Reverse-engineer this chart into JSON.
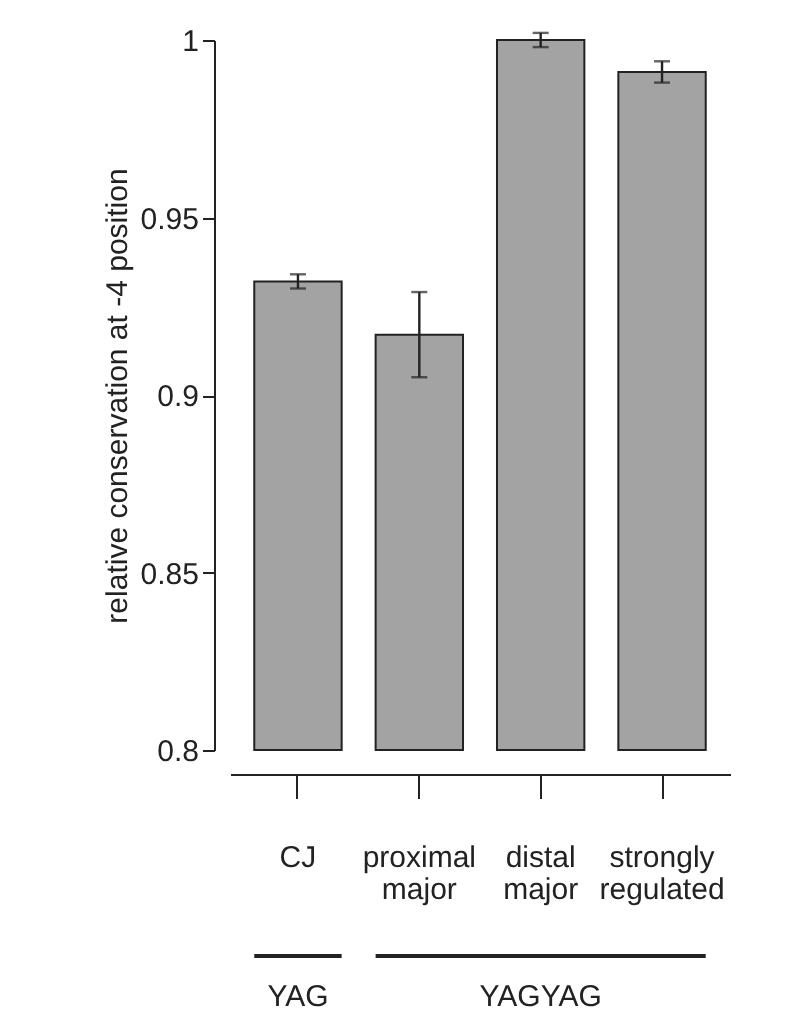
{
  "chart_data": {
    "type": "bar",
    "ylabel": "relative conservation at -4 position",
    "categories": [
      "CJ",
      "proximal major",
      "distal major",
      "strongly regulated"
    ],
    "values": [
      0.932,
      0.917,
      1.0,
      0.991
    ],
    "errors": [
      0.002,
      0.012,
      0.002,
      0.003
    ],
    "color": "#a3a3a3",
    "ylim": [
      0.8,
      1.0
    ],
    "yticks": [
      0.8,
      0.85,
      0.9,
      0.95,
      1
    ],
    "grid": false,
    "annotations": [
      "YAG",
      "YAGYAG"
    ]
  }
}
